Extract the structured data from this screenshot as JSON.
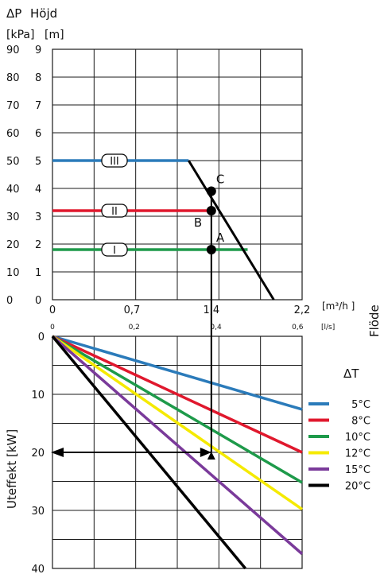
{
  "chart_data": [
    {
      "type": "line",
      "title": "",
      "ylabel_kpa": "ΔP",
      "ylabel_m": "Höjd",
      "yunit_kpa": "[kPa]",
      "yunit_m": "[m]",
      "xlabel": "Flöde",
      "xunit_m3h": "[m³/h ]",
      "xunit_ls": "[l/s]",
      "xlim": [
        0,
        2.2
      ],
      "ylim_kpa": [
        0,
        90
      ],
      "ylim_m": [
        0,
        9
      ],
      "x_ticks_m3h": [
        "0",
        "0,7",
        "1,4",
        "2,2"
      ],
      "x_ticks_m3h_values": [
        0,
        0.7,
        1.4,
        2.2
      ],
      "x_ticks_ls": [
        "0",
        "0,2",
        "0,4",
        "0,6"
      ],
      "x_ticks_ls_values_m3h": [
        0,
        0.72,
        1.44,
        2.16
      ],
      "y_ticks_kpa": [
        "0",
        "10",
        "20",
        "30",
        "40",
        "50",
        "60",
        "70",
        "80",
        "90"
      ],
      "y_ticks_m": [
        "0",
        "1",
        "2",
        "3",
        "4",
        "5",
        "6",
        "7",
        "8",
        "9"
      ],
      "grid": true,
      "series": [
        {
          "name": "I",
          "color": "#1e9a4a",
          "x": [
            0,
            1.72
          ],
          "y": [
            18,
            18
          ]
        },
        {
          "name": "II",
          "color": "#e0182d",
          "x": [
            0,
            1.4
          ],
          "y": [
            32,
            32
          ]
        },
        {
          "name": "III",
          "color": "#2b7bba",
          "x": [
            0,
            1.2
          ],
          "y": [
            50,
            50
          ]
        },
        {
          "name": "",
          "color": "#000000",
          "x": [
            1.2,
            1.95
          ],
          "y": [
            50,
            0
          ]
        }
      ],
      "points": [
        {
          "label": "A",
          "x": 1.4,
          "y": 18
        },
        {
          "label": "B",
          "x": 1.4,
          "y": 32
        },
        {
          "label": "C",
          "x": 1.4,
          "y": 39
        }
      ]
    },
    {
      "type": "line",
      "title": "",
      "ylabel": "Uteffekt [kW]",
      "xlim": [
        0,
        2.2
      ],
      "ylim": [
        0,
        40
      ],
      "y_inverted": true,
      "y_ticks": [
        "0",
        "10",
        "20",
        "30",
        "40"
      ],
      "y_ticks_values": [
        0,
        10,
        20,
        30,
        40
      ],
      "grid": true,
      "legend_title": "ΔT",
      "legend_position": "right",
      "series": [
        {
          "name": "5°C",
          "color": "#2b7bba",
          "x": [
            0,
            2.2
          ],
          "y": [
            0,
            12.6
          ]
        },
        {
          "name": "8°C",
          "color": "#e0182d",
          "x": [
            0,
            2.2
          ],
          "y": [
            0,
            20
          ]
        },
        {
          "name": "10°C",
          "color": "#1e9a4a",
          "x": [
            0,
            2.2
          ],
          "y": [
            0,
            25.2
          ]
        },
        {
          "name": "12°C",
          "color": "#f5ea00",
          "x": [
            0,
            2.2
          ],
          "y": [
            0,
            29.8
          ]
        },
        {
          "name": "15°C",
          "color": "#7a3a9a",
          "x": [
            0,
            2.2
          ],
          "y": [
            0,
            37.5
          ]
        },
        {
          "name": "20°C",
          "color": "#000000",
          "x": [
            0,
            1.7
          ],
          "y": [
            0,
            40
          ]
        }
      ],
      "arrow_path": {
        "x": [
          1.4,
          1.4,
          0
        ],
        "y_kpa_start": 39,
        "y_kw_end": 20
      }
    }
  ]
}
